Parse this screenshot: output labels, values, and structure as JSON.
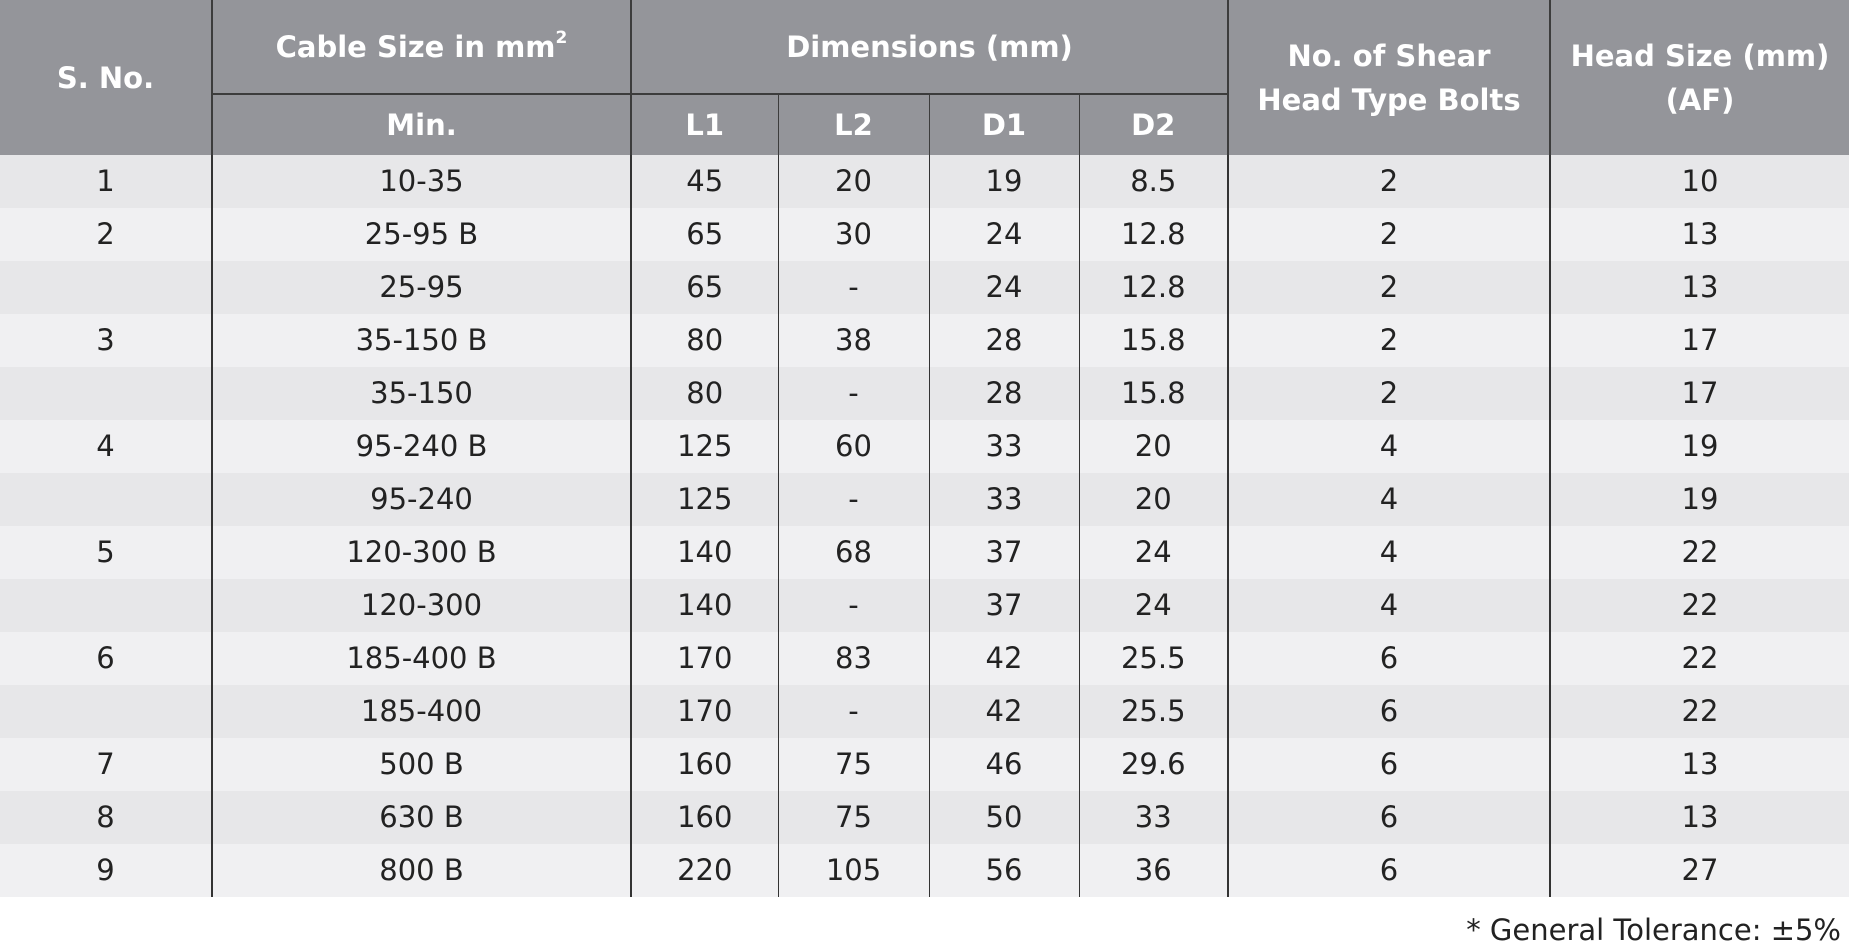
{
  "header": {
    "sno": "S. No.",
    "cable_size": "Cable Size in mm",
    "cable_sup": "2",
    "min": "Min.",
    "dimensions": "Dimensions (mm)",
    "l1": "L1",
    "l2": "L2",
    "d1": "D1",
    "d2": "D2",
    "bolts_line1": "No. of  Shear",
    "bolts_line2": "Head Type Bolts",
    "head_line1": "Head Size (mm)",
    "head_line2": "(AF)"
  },
  "rows": [
    {
      "sno": "1",
      "cable": "10-35",
      "l1": "45",
      "l2": "20",
      "d1": "19",
      "d2": "8.5",
      "bolts": "2",
      "head": "10"
    },
    {
      "sno": "2",
      "cable": "25-95 B",
      "l1": "65",
      "l2": "30",
      "d1": "24",
      "d2": "12.8",
      "bolts": "2",
      "head": "13"
    },
    {
      "sno": "",
      "cable": "25-95",
      "l1": "65",
      "l2": "-",
      "d1": "24",
      "d2": "12.8",
      "bolts": "2",
      "head": "13"
    },
    {
      "sno": "3",
      "cable": "35-150 B",
      "l1": "80",
      "l2": "38",
      "d1": "28",
      "d2": "15.8",
      "bolts": "2",
      "head": "17"
    },
    {
      "sno": "",
      "cable": "35-150",
      "l1": "80",
      "l2": "-",
      "d1": "28",
      "d2": "15.8",
      "bolts": "2",
      "head": "17"
    },
    {
      "sno": "4",
      "cable": "95-240 B",
      "l1": "125",
      "l2": "60",
      "d1": "33",
      "d2": "20",
      "bolts": "4",
      "head": "19"
    },
    {
      "sno": "",
      "cable": "95-240",
      "l1": "125",
      "l2": "-",
      "d1": "33",
      "d2": "20",
      "bolts": "4",
      "head": "19"
    },
    {
      "sno": "5",
      "cable": "120-300 B",
      "l1": "140",
      "l2": "68",
      "d1": "37",
      "d2": "24",
      "bolts": "4",
      "head": "22"
    },
    {
      "sno": "",
      "cable": "120-300",
      "l1": "140",
      "l2": "-",
      "d1": "37",
      "d2": "24",
      "bolts": "4",
      "head": "22"
    },
    {
      "sno": "6",
      "cable": "185-400 B",
      "l1": "170",
      "l2": "83",
      "d1": "42",
      "d2": "25.5",
      "bolts": "6",
      "head": "22"
    },
    {
      "sno": "",
      "cable": "185-400",
      "l1": "170",
      "l2": "-",
      "d1": "42",
      "d2": "25.5",
      "bolts": "6",
      "head": "22"
    },
    {
      "sno": "7",
      "cable": "500 B",
      "l1": "160",
      "l2": "75",
      "d1": "46",
      "d2": "29.6",
      "bolts": "6",
      "head": "13"
    },
    {
      "sno": "8",
      "cable": "630 B",
      "l1": "160",
      "l2": "75",
      "d1": "50",
      "d2": "33",
      "bolts": "6",
      "head": "13"
    },
    {
      "sno": "9",
      "cable": "800 B",
      "l1": "220",
      "l2": "105",
      "d1": "56",
      "d2": "36",
      "bolts": "6",
      "head": "27"
    }
  ],
  "note": "* General Tolerance: ±5%",
  "colors": {
    "header_bg": "#94959a",
    "row_dark": "#e7e7e9",
    "row_light": "#f0f0f2"
  }
}
